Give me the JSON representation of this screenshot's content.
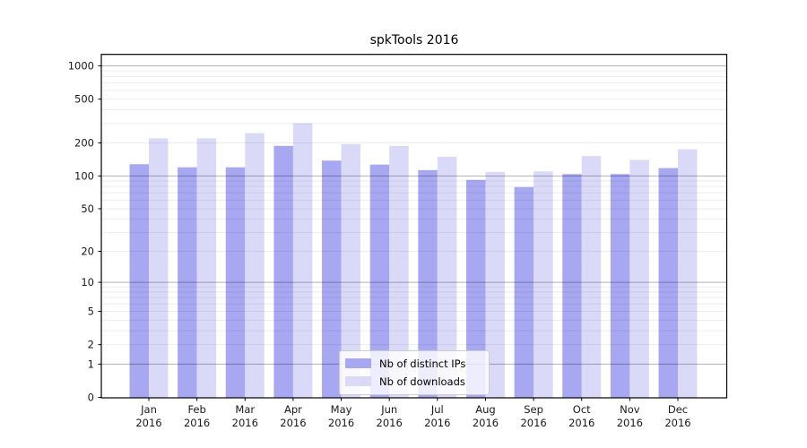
{
  "title": "spkTools 2016",
  "colors": {
    "series_ips": "#a7a7f2",
    "series_downloads": "#dadaf8",
    "axis_frame": "#000000",
    "tick_text": "#1a1a1a",
    "grid_major": "rgba(0,0,0,0.30)",
    "grid_minor": "rgba(0,0,0,0.07)",
    "legend_border": "#cccccc",
    "background": "#ffffff"
  },
  "chart_data": {
    "type": "bar",
    "title": "spkTools 2016",
    "xlabel": "",
    "ylabel": "",
    "yscale": "log10(1+x)",
    "ylim": [
      0,
      1270
    ],
    "grid": "on",
    "legend_position": "lower center",
    "y_ticks": [
      0,
      1,
      2,
      5,
      10,
      20,
      50,
      100,
      200,
      500,
      1000
    ],
    "y_minor_gridlines": [
      2,
      3,
      4,
      5,
      6,
      7,
      8,
      9,
      20,
      30,
      40,
      50,
      60,
      70,
      80,
      90,
      200,
      300,
      400,
      500,
      600,
      700,
      800,
      900
    ],
    "y_major_gridlines": [
      1,
      10,
      100,
      1000
    ],
    "categories": [
      "Jan 2016",
      "Feb 2016",
      "Mar 2016",
      "Apr 2016",
      "May 2016",
      "Jun 2016",
      "Jul 2016",
      "Aug 2016",
      "Sep 2016",
      "Oct 2016",
      "Nov 2016",
      "Dec 2016"
    ],
    "series": [
      {
        "name": "Nb of distinct IPs",
        "color": "#a7a7f2",
        "values": [
          128,
          120,
          120,
          188,
          138,
          127,
          113,
          92,
          79,
          104,
          104,
          118
        ]
      },
      {
        "name": "Nb of downloads",
        "color": "#dadaf8",
        "values": [
          220,
          220,
          246,
          302,
          195,
          188,
          150,
          109,
          110,
          152,
          140,
          175
        ]
      }
    ]
  }
}
